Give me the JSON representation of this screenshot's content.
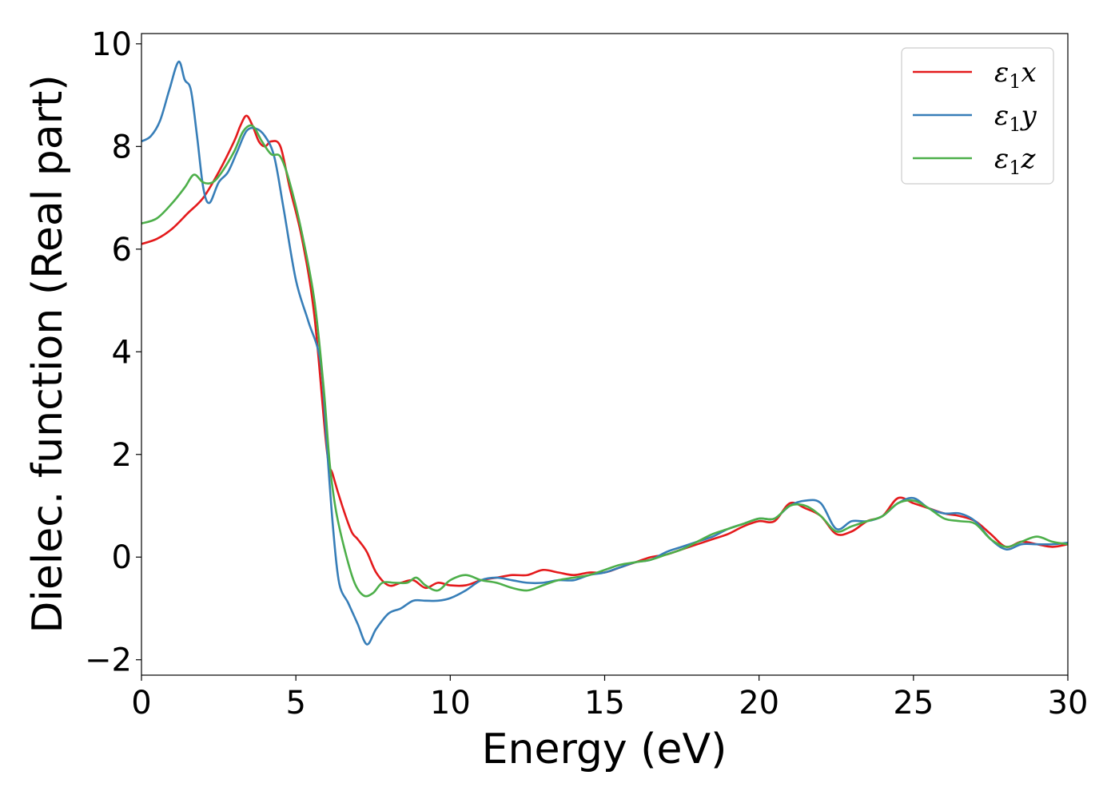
{
  "chart_data": {
    "type": "line",
    "title": "",
    "xlabel": "Energy (eV)",
    "ylabel": "Dielec. function (Real part)",
    "xlim": [
      0,
      30
    ],
    "ylim": [
      -2.3,
      10.2
    ],
    "xticks": [
      0,
      5,
      10,
      15,
      20,
      25,
      30
    ],
    "xtick_labels": [
      "0",
      "5",
      "10",
      "15",
      "20",
      "25",
      "30"
    ],
    "yticks": [
      -2,
      0,
      2,
      4,
      6,
      8,
      10
    ],
    "ytick_labels": [
      "−2",
      "0",
      "2",
      "4",
      "6",
      "8",
      "10"
    ],
    "grid": false,
    "legend_position": "top-right",
    "series": [
      {
        "name": "ε₁x",
        "legend_base": "ε",
        "legend_sub": "1",
        "legend_suffix": "x",
        "color": "#e41a1c",
        "x": [
          0,
          0.5,
          1,
          1.5,
          2,
          2.5,
          3,
          3.2,
          3.4,
          3.6,
          3.8,
          4.0,
          4.2,
          4.5,
          4.8,
          5.2,
          5.6,
          6.0,
          6.2,
          6.5,
          6.8,
          7.0,
          7.3,
          7.6,
          8.0,
          8.4,
          8.8,
          9.2,
          9.6,
          10,
          10.5,
          11,
          11.5,
          12,
          12.5,
          13,
          13.5,
          14,
          14.5,
          15,
          15.5,
          16,
          16.5,
          17,
          17.5,
          18,
          18.5,
          19,
          19.5,
          20,
          20.5,
          21,
          21.5,
          22,
          22.5,
          23,
          23.5,
          24,
          24.5,
          25,
          25.5,
          26,
          26.5,
          27,
          27.5,
          28,
          28.5,
          29,
          29.5,
          30
        ],
        "y": [
          6.1,
          6.2,
          6.4,
          6.7,
          7.0,
          7.5,
          8.1,
          8.4,
          8.6,
          8.4,
          8.1,
          8.0,
          8.1,
          8.0,
          7.2,
          6.2,
          4.7,
          2.1,
          1.6,
          1.0,
          0.5,
          0.35,
          0.1,
          -0.3,
          -0.55,
          -0.5,
          -0.45,
          -0.6,
          -0.5,
          -0.55,
          -0.55,
          -0.45,
          -0.4,
          -0.35,
          -0.35,
          -0.25,
          -0.3,
          -0.35,
          -0.3,
          -0.3,
          -0.2,
          -0.1,
          0.0,
          0.05,
          0.15,
          0.25,
          0.35,
          0.45,
          0.6,
          0.7,
          0.7,
          1.05,
          0.95,
          0.8,
          0.45,
          0.5,
          0.7,
          0.8,
          1.15,
          1.05,
          0.95,
          0.85,
          0.8,
          0.7,
          0.45,
          0.2,
          0.3,
          0.25,
          0.2,
          0.25
        ]
      },
      {
        "name": "ε₁y",
        "legend_base": "ε",
        "legend_sub": "1",
        "legend_suffix": "y",
        "color": "#377eb8",
        "x": [
          0,
          0.3,
          0.6,
          0.9,
          1.2,
          1.4,
          1.6,
          1.8,
          2.0,
          2.2,
          2.5,
          2.8,
          3.1,
          3.4,
          3.7,
          4.0,
          4.3,
          4.6,
          5.0,
          5.4,
          5.8,
          6.0,
          6.2,
          6.4,
          6.7,
          7.0,
          7.3,
          7.6,
          8.0,
          8.4,
          8.8,
          9.2,
          9.6,
          10,
          10.5,
          11,
          11.5,
          12,
          12.5,
          13,
          13.5,
          14,
          14.5,
          15,
          15.5,
          16,
          16.5,
          17,
          17.5,
          18,
          18.5,
          19,
          19.5,
          20,
          20.5,
          21,
          21.5,
          22,
          22.5,
          23,
          23.5,
          24,
          24.5,
          25,
          25.5,
          26,
          26.5,
          27,
          27.5,
          28,
          28.5,
          29,
          29.5,
          30
        ],
        "y": [
          8.1,
          8.2,
          8.5,
          9.1,
          9.65,
          9.3,
          9.1,
          8.2,
          7.2,
          6.9,
          7.3,
          7.5,
          7.9,
          8.3,
          8.35,
          8.2,
          7.8,
          6.8,
          5.4,
          4.6,
          3.8,
          2.2,
          0.6,
          -0.5,
          -0.9,
          -1.3,
          -1.7,
          -1.4,
          -1.1,
          -1.0,
          -0.85,
          -0.85,
          -0.85,
          -0.8,
          -0.65,
          -0.45,
          -0.4,
          -0.45,
          -0.5,
          -0.5,
          -0.45,
          -0.45,
          -0.35,
          -0.3,
          -0.2,
          -0.1,
          -0.05,
          0.1,
          0.2,
          0.3,
          0.4,
          0.55,
          0.65,
          0.75,
          0.75,
          1.0,
          1.1,
          1.05,
          0.55,
          0.7,
          0.7,
          0.8,
          1.05,
          1.15,
          0.95,
          0.85,
          0.85,
          0.7,
          0.35,
          0.15,
          0.25,
          0.25,
          0.25,
          0.28
        ]
      },
      {
        "name": "ε₁z",
        "legend_base": "ε",
        "legend_sub": "1",
        "legend_suffix": "z",
        "color": "#4daf4a",
        "x": [
          0,
          0.5,
          1,
          1.4,
          1.7,
          2.0,
          2.3,
          2.6,
          3.0,
          3.3,
          3.6,
          3.9,
          4.2,
          4.5,
          4.8,
          5.2,
          5.6,
          5.9,
          6.1,
          6.3,
          6.6,
          6.9,
          7.2,
          7.5,
          7.8,
          8.2,
          8.6,
          8.9,
          9.2,
          9.6,
          10,
          10.5,
          11,
          11.5,
          12,
          12.5,
          13,
          13.5,
          14,
          14.5,
          15,
          15.5,
          16,
          16.5,
          17,
          17.5,
          18,
          18.5,
          19,
          19.5,
          20,
          20.5,
          21,
          21.5,
          22,
          22.5,
          23,
          23.5,
          24,
          24.5,
          25,
          25.5,
          26,
          26.5,
          27,
          27.5,
          28,
          28.5,
          29,
          29.5,
          30
        ],
        "y": [
          6.5,
          6.6,
          6.9,
          7.2,
          7.45,
          7.3,
          7.3,
          7.5,
          7.9,
          8.3,
          8.4,
          8.1,
          7.85,
          7.8,
          7.3,
          6.3,
          5.0,
          3.3,
          1.8,
          0.9,
          0.1,
          -0.5,
          -0.75,
          -0.7,
          -0.5,
          -0.5,
          -0.5,
          -0.4,
          -0.55,
          -0.65,
          -0.45,
          -0.35,
          -0.45,
          -0.5,
          -0.6,
          -0.65,
          -0.55,
          -0.45,
          -0.4,
          -0.35,
          -0.25,
          -0.15,
          -0.1,
          -0.05,
          0.05,
          0.15,
          0.3,
          0.45,
          0.55,
          0.65,
          0.75,
          0.75,
          1.0,
          1.0,
          0.8,
          0.5,
          0.6,
          0.7,
          0.8,
          1.05,
          1.1,
          0.95,
          0.75,
          0.7,
          0.65,
          0.35,
          0.2,
          0.3,
          0.4,
          0.3,
          0.25
        ]
      }
    ]
  }
}
